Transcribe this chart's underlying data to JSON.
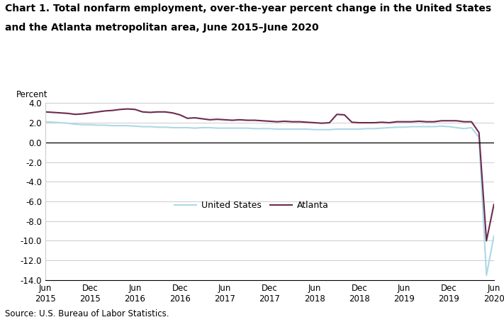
{
  "title_line1": "Chart 1. Total nonfarm employment, over-the-year percent change in the United States",
  "title_line2": "and the Atlanta metropolitan area, June 2015–June 2020",
  "ylabel": "Percent",
  "source": "Source: U.S. Bureau of Labor Statistics.",
  "ylim": [
    -14.0,
    4.0
  ],
  "yticks": [
    4.0,
    2.0,
    0.0,
    -2.0,
    -4.0,
    -6.0,
    -8.0,
    -10.0,
    -12.0,
    -14.0
  ],
  "us_color": "#add8e6",
  "atlanta_color": "#6d2b4e",
  "us_label": "United States",
  "atlanta_label": "Atlanta",
  "x_tick_labels": [
    "Jun\n2015",
    "Dec\n2015",
    "Jun\n2016",
    "Dec\n2016",
    "Jun\n2017",
    "Dec\n2017",
    "Jun\n2018",
    "Dec\n2018",
    "Jun\n2019",
    "Dec\n2019",
    "Jun\n2020"
  ],
  "x_tick_positions": [
    0,
    6,
    12,
    18,
    24,
    30,
    36,
    42,
    48,
    54,
    60
  ],
  "us_data": [
    2.1,
    2.05,
    2.0,
    1.95,
    1.85,
    1.8,
    1.8,
    1.75,
    1.75,
    1.7,
    1.7,
    1.7,
    1.65,
    1.6,
    1.6,
    1.55,
    1.55,
    1.5,
    1.5,
    1.5,
    1.45,
    1.5,
    1.5,
    1.45,
    1.45,
    1.45,
    1.45,
    1.45,
    1.4,
    1.4,
    1.4,
    1.35,
    1.35,
    1.35,
    1.35,
    1.35,
    1.3,
    1.3,
    1.3,
    1.35,
    1.35,
    1.35,
    1.35,
    1.4,
    1.4,
    1.45,
    1.5,
    1.55,
    1.55,
    1.6,
    1.6,
    1.6,
    1.6,
    1.65,
    1.6,
    1.5,
    1.4,
    1.5,
    0.5,
    -13.5,
    -9.5
  ],
  "atlanta_data": [
    3.1,
    3.05,
    3.0,
    2.95,
    2.85,
    2.9,
    3.0,
    3.1,
    3.2,
    3.25,
    3.35,
    3.4,
    3.35,
    3.1,
    3.05,
    3.1,
    3.1,
    3.0,
    2.8,
    2.45,
    2.5,
    2.4,
    2.3,
    2.35,
    2.3,
    2.25,
    2.3,
    2.25,
    2.25,
    2.2,
    2.15,
    2.1,
    2.15,
    2.1,
    2.1,
    2.05,
    2.0,
    1.95,
    2.0,
    2.85,
    2.8,
    2.05,
    2.0,
    2.0,
    2.0,
    2.05,
    2.0,
    2.1,
    2.1,
    2.1,
    2.15,
    2.1,
    2.1,
    2.2,
    2.2,
    2.2,
    2.1,
    2.1,
    1.0,
    -10.0,
    -6.3
  ]
}
